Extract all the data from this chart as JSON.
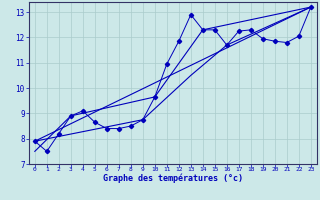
{
  "xlabel": "Graphe des températures (°c)",
  "xlim": [
    -0.5,
    23.5
  ],
  "ylim": [
    7,
    13.4
  ],
  "yticks": [
    7,
    8,
    9,
    10,
    11,
    12,
    13
  ],
  "xticks": [
    0,
    1,
    2,
    3,
    4,
    5,
    6,
    7,
    8,
    9,
    10,
    11,
    12,
    13,
    14,
    15,
    16,
    17,
    18,
    19,
    20,
    21,
    22,
    23
  ],
  "bg_color": "#cce8e8",
  "grid_color": "#aacccc",
  "line_color": "#0000bb",
  "axis_color": "#333366",
  "curve1_x": [
    0,
    1,
    2,
    3,
    4,
    5,
    6,
    7,
    8,
    9,
    10,
    11,
    12,
    13,
    14,
    15,
    16,
    17,
    18,
    19,
    20,
    21,
    22,
    23
  ],
  "curve1_y": [
    7.9,
    7.5,
    8.2,
    8.9,
    9.1,
    8.65,
    8.4,
    8.4,
    8.5,
    8.75,
    9.65,
    10.95,
    11.85,
    12.9,
    12.3,
    12.3,
    11.7,
    12.25,
    12.3,
    11.95,
    11.85,
    11.8,
    12.05,
    13.2
  ],
  "curve2_x": [
    0,
    23
  ],
  "curve2_y": [
    7.9,
    13.2
  ],
  "curve3_x": [
    0,
    9,
    13,
    16,
    23
  ],
  "curve3_y": [
    7.9,
    8.75,
    10.5,
    11.7,
    13.2
  ],
  "curve4_x": [
    0,
    3,
    10,
    14,
    23
  ],
  "curve4_y": [
    7.5,
    8.9,
    9.65,
    12.3,
    13.2
  ]
}
